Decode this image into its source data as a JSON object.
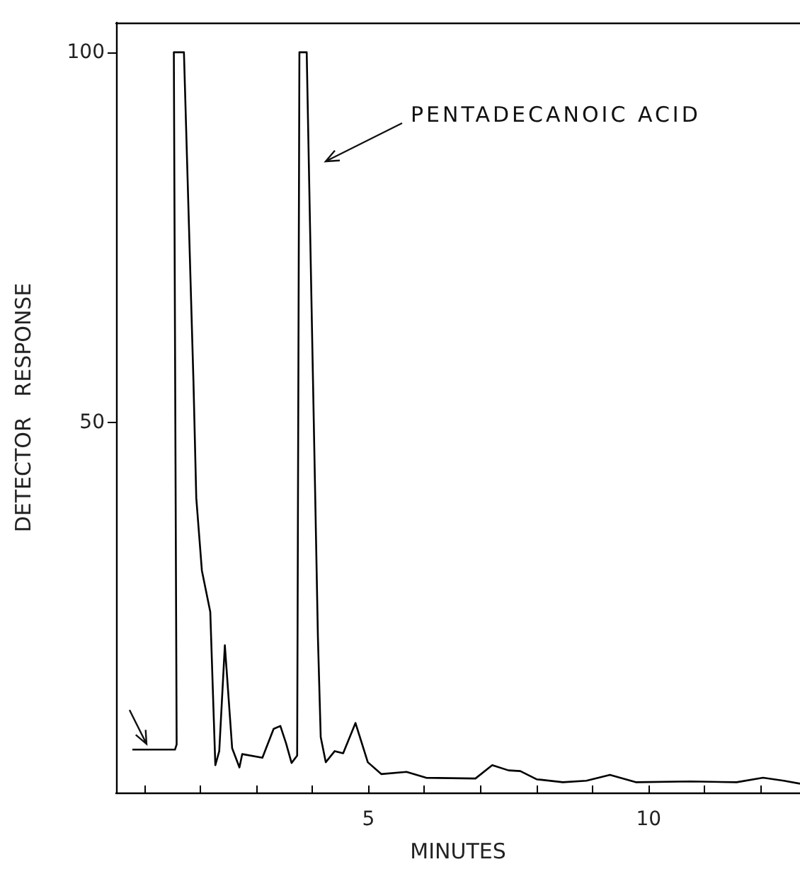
{
  "chart_data": {
    "type": "line",
    "xlabel": "MINUTES",
    "ylabel": "DETECTOR   RESPONSE",
    "annotations": [
      "PENTADECANOIC ACID"
    ],
    "xlim": [
      0.5,
      12.7
    ],
    "ylim": [
      0,
      104
    ],
    "xticks": [
      {
        "value": 1,
        "label": null
      },
      {
        "value": 2,
        "label": null
      },
      {
        "value": 3,
        "label": null
      },
      {
        "value": 4,
        "label": null
      },
      5,
      {
        "value": 6,
        "label": null
      },
      {
        "value": 7,
        "label": null
      },
      {
        "value": 8,
        "label": null
      },
      {
        "value": 9,
        "label": null
      },
      10,
      {
        "value": 11,
        "label": null
      },
      {
        "value": 12,
        "label": null
      }
    ],
    "yticks": [
      50,
      100
    ],
    "grid": false,
    "marker": "none",
    "line_style": "solid",
    "series": [
      {
        "color": "#000000",
        "x": [
          0.79,
          1.55,
          1.58,
          1.53,
          1.71,
          1.88,
          1.93,
          2.03,
          2.18,
          2.27,
          2.34,
          2.44,
          2.57,
          2.7,
          2.75,
          3.11,
          3.31,
          3.43,
          3.53,
          3.63,
          3.73,
          3.77,
          3.9,
          4.1,
          4.15,
          4.24,
          4.4,
          4.55,
          4.77,
          4.99,
          5.23,
          5.68,
          6.03,
          6.91,
          7.21,
          7.5,
          7.71,
          8.0,
          8.47,
          8.89,
          9.31,
          9.77,
          10.74,
          11.57,
          12.04,
          12.41,
          12.7
        ],
        "values": [
          5.8,
          5.8,
          6.5,
          100,
          100,
          55.5,
          39.8,
          30,
          24.4,
          3.7,
          5.6,
          19.9,
          6,
          3.4,
          5.2,
          4.7,
          8.6,
          9,
          6.7,
          4,
          5,
          100,
          100,
          21,
          7.5,
          4.1,
          5.6,
          5.3,
          9.4,
          4.1,
          2.5,
          2.8,
          2.0,
          1.9,
          3.7,
          3.0,
          2.9,
          1.8,
          1.4,
          1.6,
          2.4,
          1.4,
          1.5,
          1.4,
          2.0,
          1.6,
          1.2
        ]
      }
    ]
  }
}
